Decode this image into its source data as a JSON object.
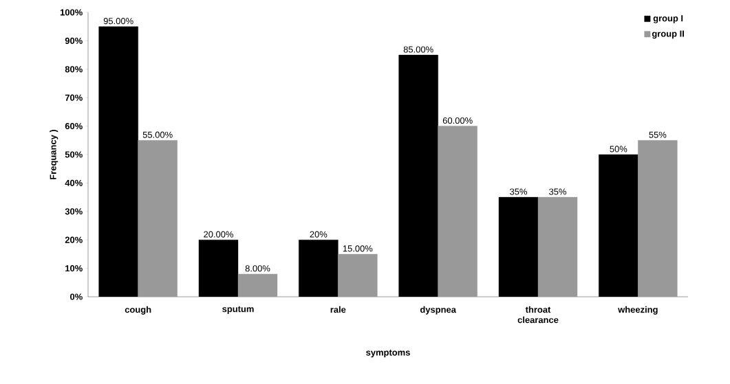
{
  "chart_data": {
    "type": "bar",
    "xlabel": "symptoms",
    "ylabel": "Frequancy )",
    "categories": [
      "cough",
      "sputum",
      "rale",
      "dyspnea",
      "throat clearance",
      "wheezing"
    ],
    "series": [
      {
        "name": "group I",
        "color": "#000000",
        "values": [
          95,
          20,
          20,
          85,
          35,
          50
        ],
        "value_labels": [
          "95.00%",
          "20.00%",
          "20%",
          "85.00%",
          "35%",
          "50%"
        ]
      },
      {
        "name": "group II",
        "color": "#999999",
        "values": [
          55,
          8,
          15,
          60,
          35,
          55
        ],
        "value_labels": [
          "55.00%",
          "8.00%",
          "15.00%",
          "60.00%",
          "35%",
          "55%"
        ]
      }
    ],
    "ylim": [
      0,
      100
    ],
    "yticks": [
      {
        "value": 0,
        "label": "0%"
      },
      {
        "value": 10,
        "label": "10%"
      },
      {
        "value": 20,
        "label": "20%"
      },
      {
        "value": 30,
        "label": "30%"
      },
      {
        "value": 40,
        "label": "40%"
      },
      {
        "value": 50,
        "label": "50%"
      },
      {
        "value": 60,
        "label": "60%"
      },
      {
        "value": 70,
        "label": "70%"
      },
      {
        "value": 80,
        "label": "80%"
      },
      {
        "value": 90,
        "label": "90%"
      },
      {
        "value": 100,
        "label": "100%"
      }
    ],
    "grid": false,
    "legend": "top right"
  }
}
